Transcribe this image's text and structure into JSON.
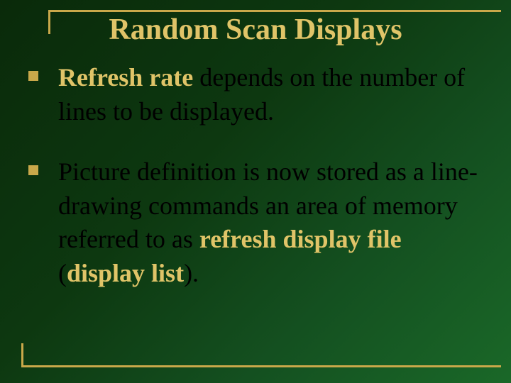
{
  "slide": {
    "background_gradient": [
      "#0a2a0a",
      "#0d3810",
      "#145020",
      "#1a6828"
    ],
    "frame_color": "#c9a84a",
    "title": {
      "text": "Random Scan Displays",
      "color": "#e0c468",
      "fontsize": 42,
      "font_weight": "bold",
      "font_family": "Times New Roman"
    },
    "body_text_color": "#000000",
    "highlight_color": "#e0c468",
    "body_fontsize": 36,
    "bullets": [
      {
        "parts": [
          {
            "text": "Refresh rate",
            "highlight": true
          },
          {
            "text": " depends on the number of lines to be displayed.",
            "highlight": false
          }
        ]
      },
      {
        "parts": [
          {
            "text": "Picture definition is now stored as a line-drawing commands an area of memory referred to as ",
            "highlight": false
          },
          {
            "text": "refresh display file",
            "highlight": true
          },
          {
            "text": " (",
            "highlight": false
          },
          {
            "text": "display list",
            "highlight": true
          },
          {
            "text": ").",
            "highlight": false
          }
        ]
      }
    ]
  }
}
